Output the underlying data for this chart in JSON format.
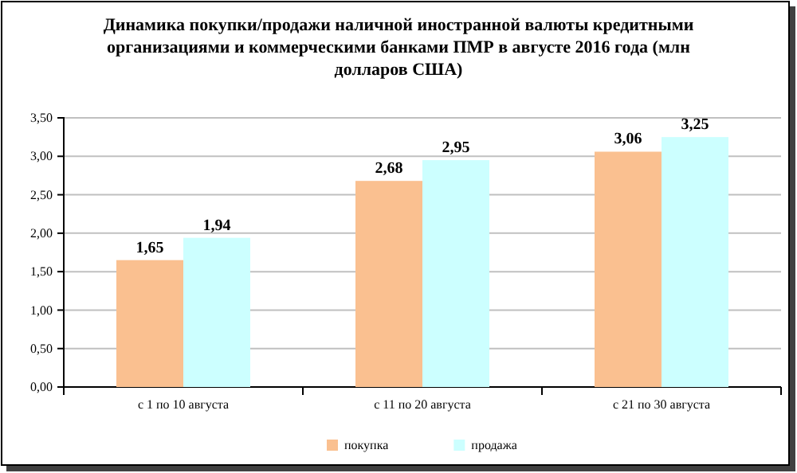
{
  "chart_data": {
    "type": "bar",
    "title": "Динамика покупки/продажи наличной иностранной валюты кредитными организациями и коммерческими банками ПМР в августе 2016 года (млн долларов США)",
    "categories": [
      "с 1 по 10 августа",
      "с 11 по 20 августа",
      "с 21 по 30 августа"
    ],
    "series": [
      {
        "name": "покупка",
        "color": "#fac090",
        "values": [
          1.65,
          2.68,
          3.06
        ],
        "value_labels": [
          "1,65",
          "2,68",
          "3,06"
        ]
      },
      {
        "name": "продажа",
        "color": "#ccffff",
        "values": [
          1.94,
          2.95,
          3.25
        ],
        "value_labels": [
          "1,94",
          "2,95",
          "3,25"
        ]
      }
    ],
    "ylim": [
      0,
      3.5
    ],
    "yticks": [
      {
        "value": 0,
        "label": "0,00"
      },
      {
        "value": 0.5,
        "label": "0,50"
      },
      {
        "value": 1,
        "label": "1,00"
      },
      {
        "value": 1.5,
        "label": "1,50"
      },
      {
        "value": 2,
        "label": "2,00"
      },
      {
        "value": 2.5,
        "label": "2,50"
      },
      {
        "value": 3,
        "label": "3,00"
      },
      {
        "value": 3.5,
        "label": "3,50"
      }
    ],
    "grid": "y",
    "legend": "bottom"
  }
}
